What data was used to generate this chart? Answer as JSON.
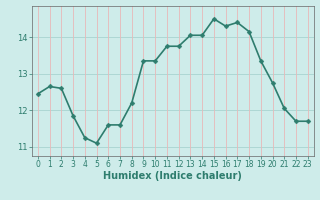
{
  "x": [
    0,
    1,
    2,
    3,
    4,
    5,
    6,
    7,
    8,
    9,
    10,
    11,
    12,
    13,
    14,
    15,
    16,
    17,
    18,
    19,
    20,
    21,
    22,
    23
  ],
  "y": [
    12.45,
    12.65,
    12.6,
    11.85,
    11.25,
    11.1,
    11.6,
    11.6,
    12.2,
    13.35,
    13.35,
    13.75,
    13.75,
    14.05,
    14.05,
    14.5,
    14.3,
    14.4,
    14.15,
    13.35,
    12.75,
    12.05,
    11.7,
    11.7
  ],
  "line_color": "#2e7d6e",
  "marker": "D",
  "marker_size": 2.5,
  "bg_color": "#ceecea",
  "pink_grid_color": "#e8b8b8",
  "teal_grid_color": "#a8d4d0",
  "xlabel": "Humidex (Indice chaleur)",
  "ylim": [
    10.75,
    14.85
  ],
  "xlim": [
    -0.5,
    23.5
  ],
  "yticks": [
    11,
    12,
    13,
    14
  ],
  "xticks": [
    0,
    1,
    2,
    3,
    4,
    5,
    6,
    7,
    8,
    9,
    10,
    11,
    12,
    13,
    14,
    15,
    16,
    17,
    18,
    19,
    20,
    21,
    22,
    23
  ],
  "axis_fontsize": 7,
  "tick_fontsize": 6,
  "line_width": 1.2
}
